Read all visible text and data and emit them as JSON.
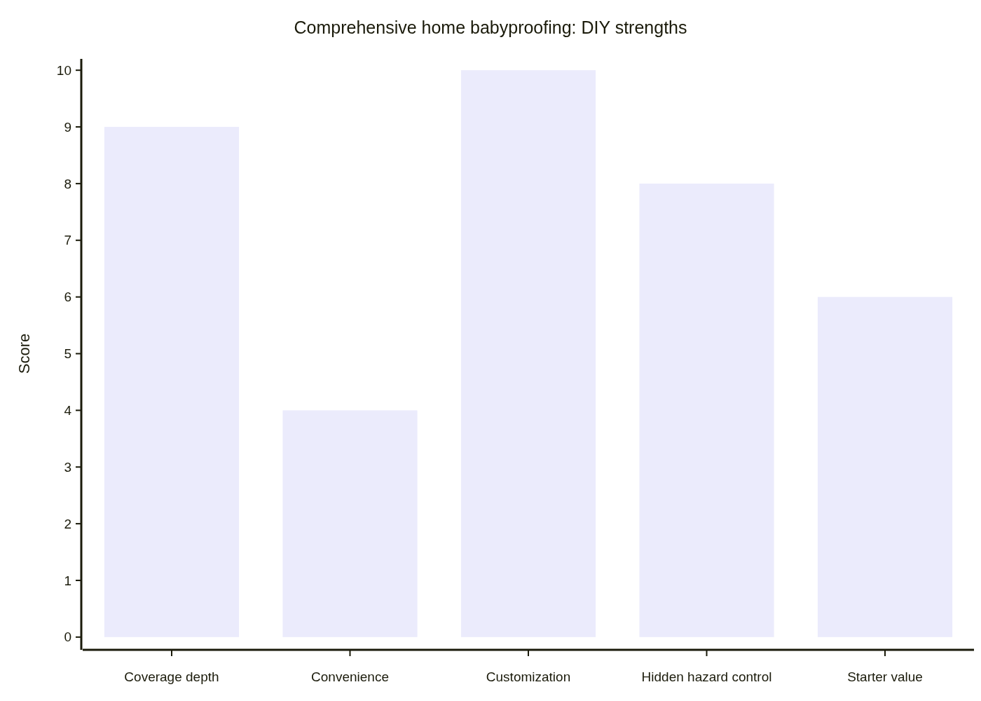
{
  "chart_data": {
    "type": "bar",
    "title": "Comprehensive home babyproofing: DIY strengths",
    "ylabel": "Score",
    "categories": [
      "Coverage depth",
      "Convenience",
      "Customization",
      "Hidden hazard control",
      "Starter value"
    ],
    "values": [
      9,
      4,
      10,
      8,
      6
    ],
    "color": "#ebebfc",
    "ylim": [
      -0.2,
      10.2
    ],
    "yticks": [
      0,
      1,
      2,
      3,
      4,
      5,
      6,
      7,
      8,
      9,
      10
    ],
    "grid": false
  }
}
